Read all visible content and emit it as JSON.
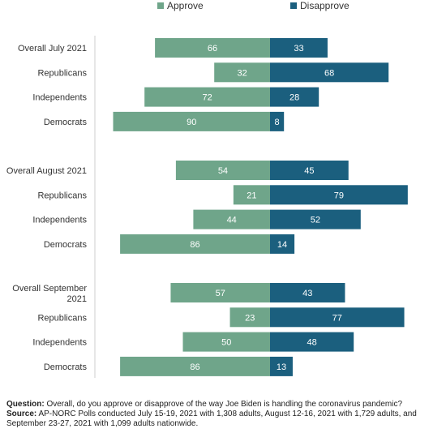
{
  "legend": {
    "approve_label": "Approve",
    "disapprove_label": "Disapprove"
  },
  "colors": {
    "approve": "#6fa58a",
    "disapprove": "#1b5f7e",
    "axis": "#cccccc"
  },
  "chart_data": {
    "type": "bar",
    "orientation": "horizontal-diverging",
    "xlim": [
      -100,
      100
    ],
    "series_names": [
      "Approve",
      "Disapprove"
    ],
    "groups": [
      {
        "rows": [
          {
            "label": "Overall July 2021",
            "approve": 66,
            "disapprove": 33
          },
          {
            "label": "Republicans",
            "approve": 32,
            "disapprove": 68
          },
          {
            "label": "Independents",
            "approve": 72,
            "disapprove": 28
          },
          {
            "label": "Democrats",
            "approve": 90,
            "disapprove": 8
          }
        ]
      },
      {
        "rows": [
          {
            "label": "Overall August 2021",
            "approve": 54,
            "disapprove": 45
          },
          {
            "label": "Republicans",
            "approve": 21,
            "disapprove": 79
          },
          {
            "label": "Independents",
            "approve": 44,
            "disapprove": 52
          },
          {
            "label": "Democrats",
            "approve": 86,
            "disapprove": 14
          }
        ]
      },
      {
        "rows": [
          {
            "label": "Overall September 2021",
            "approve": 57,
            "disapprove": 43
          },
          {
            "label": "Republicans",
            "approve": 23,
            "disapprove": 77
          },
          {
            "label": "Independents",
            "approve": 50,
            "disapprove": 48
          },
          {
            "label": "Democrats",
            "approve": 86,
            "disapprove": 13
          }
        ]
      }
    ]
  },
  "footnote": {
    "question_label": "Question:",
    "question_text": " Overall, do you approve or disapprove of the way Joe Biden is handling the coronavirus pandemic?",
    "source_label": "Source:",
    "source_text": " AP-NORC Polls conducted July 15-19, 2021 with 1,308 adults, August 12-16, 2021 with 1,729 adults, and September 23-27, 2021 with 1,099 adults nationwide."
  }
}
